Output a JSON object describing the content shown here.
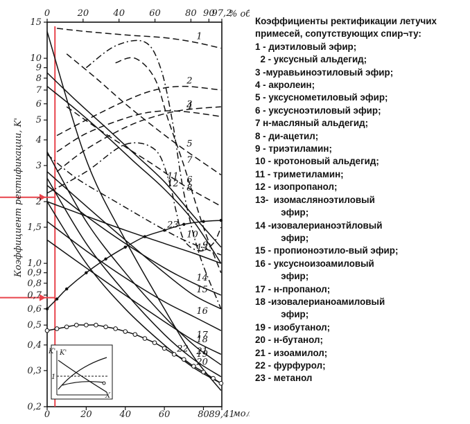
{
  "chart_data": {
    "type": "line",
    "title": "Коэффициенты ректификации летучих примесей, сопутствующих спир¬ту:",
    "ylabel": "Коэффициент ректификации, K'",
    "top_axis_unit": "% об.",
    "top_axis_ticks": [
      "0",
      "20",
      "40",
      "60",
      "80",
      "90",
      "97,2"
    ],
    "bottom_axis_unit": "мол.%",
    "bottom_axis_ticks": [
      "0",
      "20",
      "40",
      "60",
      "80",
      "89,41"
    ],
    "yticks": [
      "0,2",
      "0,3",
      "0,4",
      "0,5",
      "0,6",
      "0,7",
      "0,8",
      "0,9",
      "1,0",
      "1,5",
      "2",
      "3",
      "4",
      "5",
      "6",
      "7",
      "8",
      "9",
      "10",
      "15"
    ],
    "xlim": [
      0,
      89.41
    ],
    "ylim": [
      0.2,
      15
    ],
    "y_scale": "log",
    "highlight_lines": [
      {
        "y": 2.1,
        "color": "#e8434b"
      },
      {
        "y": 0.68,
        "color": "#e8434b"
      },
      {
        "x": 4,
        "color": "#e8434b"
      }
    ],
    "series": [
      {
        "name": "1",
        "style": "dash",
        "x": [
          5,
          20,
          40,
          60,
          75,
          89
        ],
        "y": [
          14,
          13.5,
          13,
          12.6,
          12,
          11.2
        ]
      },
      {
        "name": "2",
        "style": "dash",
        "x": [
          5,
          20,
          40,
          55,
          70,
          89
        ],
        "y": [
          4.2,
          5,
          6.2,
          7,
          7.3,
          7
        ]
      },
      {
        "name": "3",
        "style": "dash",
        "x": [
          5,
          20,
          40,
          55,
          70,
          89
        ],
        "y": [
          2.8,
          3.6,
          4.6,
          5.2,
          5.6,
          5.8
        ]
      },
      {
        "name": "4",
        "style": "dash",
        "x": [
          5,
          20,
          40,
          55,
          70,
          89
        ],
        "y": [
          3.5,
          4.3,
          5.1,
          5.5,
          5.5,
          5.2
        ]
      },
      {
        "name": "5",
        "style": "dash",
        "x": [
          10,
          25,
          40,
          55,
          70,
          89
        ],
        "y": [
          10.5,
          8,
          6,
          4.6,
          3.6,
          2.7
        ]
      },
      {
        "name": "6",
        "style": "dash",
        "x": [
          10,
          25,
          40,
          55,
          70,
          89
        ],
        "y": [
          5.8,
          4.6,
          3.7,
          3,
          2.4,
          1.9
        ]
      },
      {
        "name": "7",
        "style": "dash",
        "x": [
          35,
          45,
          55,
          62,
          70,
          80,
          89
        ],
        "y": [
          9.5,
          10,
          8,
          5,
          3,
          1.5,
          0.9
        ]
      },
      {
        "name": "8",
        "style": "dashdot",
        "x": [
          20,
          35,
          50,
          58,
          64,
          70,
          78,
          89
        ],
        "y": [
          9,
          11.5,
          12,
          9,
          5,
          2.2,
          1.1,
          0.6
        ]
      },
      {
        "name": "9",
        "style": "dashdot",
        "x": [
          0,
          20,
          40,
          55,
          62,
          66,
          70,
          78,
          85,
          89
        ],
        "y": [
          2.2,
          2.8,
          3.8,
          3.6,
          2.6,
          1.8,
          1.3,
          1.15,
          1.25,
          1.5
        ]
      },
      {
        "name": "10",
        "style": "dashdot",
        "x": [
          0,
          15,
          35,
          55,
          70,
          89
        ],
        "y": [
          3.4,
          2.6,
          2,
          1.55,
          1.3,
          1.1
        ]
      },
      {
        "name": "11",
        "style": "solid",
        "x": [
          0,
          15,
          30,
          45,
          60,
          75,
          89
        ],
        "y": [
          8.5,
          6.2,
          4.6,
          3.4,
          2.5,
          1.7,
          1.2
        ]
      },
      {
        "name": "12",
        "style": "solid",
        "x": [
          0,
          15,
          30,
          45,
          60,
          75,
          89
        ],
        "y": [
          7.3,
          5.6,
          4.2,
          3.1,
          2.3,
          1.6,
          1
        ]
      },
      {
        "name": "13",
        "style": "solid",
        "x": [
          0,
          20,
          40,
          60,
          75,
          89
        ],
        "y": [
          2,
          1.7,
          1.45,
          1.25,
          1.12,
          1
        ]
      },
      {
        "name": "14",
        "style": "solid",
        "x": [
          0,
          20,
          40,
          60,
          75,
          89
        ],
        "y": [
          2.4,
          1.7,
          1.25,
          0.95,
          0.8,
          0.7
        ]
      },
      {
        "name": "15",
        "style": "solid",
        "x": [
          0,
          20,
          40,
          60,
          75,
          89
        ],
        "y": [
          2.8,
          1.9,
          1.3,
          0.9,
          0.7,
          0.6
        ]
      },
      {
        "name": "16",
        "style": "solid",
        "x": [
          0,
          20,
          40,
          60,
          75,
          89
        ],
        "y": [
          1.6,
          1.15,
          0.85,
          0.65,
          0.55,
          0.47
        ]
      },
      {
        "name": "17",
        "style": "solid",
        "x": [
          0,
          20,
          40,
          60,
          75,
          89
        ],
        "y": [
          1.3,
          0.95,
          0.7,
          0.52,
          0.42,
          0.36
        ]
      },
      {
        "name": "18",
        "style": "solid",
        "x": [
          0,
          20,
          40,
          60,
          75,
          89
        ],
        "y": [
          3.5,
          1.6,
          0.9,
          0.55,
          0.4,
          0.32
        ]
      },
      {
        "name": "19",
        "style": "solid",
        "x": [
          0,
          20,
          40,
          60,
          75,
          89
        ],
        "y": [
          2.6,
          1.25,
          0.72,
          0.45,
          0.34,
          0.28
        ]
      },
      {
        "name": "20",
        "style": "solid",
        "x": [
          0,
          20,
          40,
          60,
          75,
          89
        ],
        "y": [
          2,
          1,
          0.6,
          0.4,
          0.31,
          0.26
        ]
      },
      {
        "name": "21",
        "style": "solid",
        "x": [
          0,
          20,
          40,
          60,
          75,
          89
        ],
        "y": [
          13.5,
          3.2,
          1.3,
          0.6,
          0.35,
          0.24
        ]
      },
      {
        "name": "22",
        "style": "solid",
        "markers": "circle",
        "x": [
          0,
          5,
          10,
          15,
          20,
          25,
          30,
          35,
          40,
          45,
          50,
          55,
          60,
          65,
          70,
          75,
          80,
          85,
          89
        ],
        "y": [
          0.47,
          0.48,
          0.49,
          0.5,
          0.5,
          0.5,
          0.49,
          0.48,
          0.465,
          0.45,
          0.43,
          0.41,
          0.385,
          0.36,
          0.34,
          0.315,
          0.295,
          0.275,
          0.26
        ]
      },
      {
        "name": "23",
        "style": "solid",
        "markers": "dot",
        "x": [
          0,
          5,
          10,
          20,
          30,
          40,
          50,
          60,
          70,
          80,
          89
        ],
        "y": [
          0.6,
          0.67,
          0.75,
          0.9,
          1.05,
          1.2,
          1.35,
          1.45,
          1.55,
          1.6,
          1.62
        ]
      }
    ]
  },
  "legend": {
    "title": "Коэффициенты ректификации летучих примесей, сопутствующих спир¬ту:",
    "items": [
      "1 - диэтиловый эфир;",
      "  2 - уксусный альдегид;",
      "3 -муравьиноэтиловый эфир;",
      "4 - акролеин;",
      "5 - уксуснометиловый эфир;",
      "6 - уксусноэтиловый эфир;",
      "7 н-масляный альдегид;",
      "8 - ди-ацетил;",
      "9 - триэтиламин;",
      "10 - кротоновый альдегид;",
      "11 - триметиламин;",
      "12 - изопропанол;",
      "13-  изомасляноэтиловый",
      "          эфир;",
      "14 -изовалерианоэтйловый",
      "          эфир;",
      "15 - пропионоэтило-вый эфир;",
      "16 - уксусноизоамиловый",
      "          эфир;",
      "17 - н-пропанол;",
      "18 -изовалерианоамиловый",
      "          эфир;",
      "19 - изобутанол;",
      "20 - н-бутанол;",
      "21 - изоамилол;",
      "22 - фурфурол;",
      "23 - метанол"
    ]
  },
  "inset": {
    "labels": [
      "K'",
      "K'",
      "1",
      "X"
    ]
  }
}
